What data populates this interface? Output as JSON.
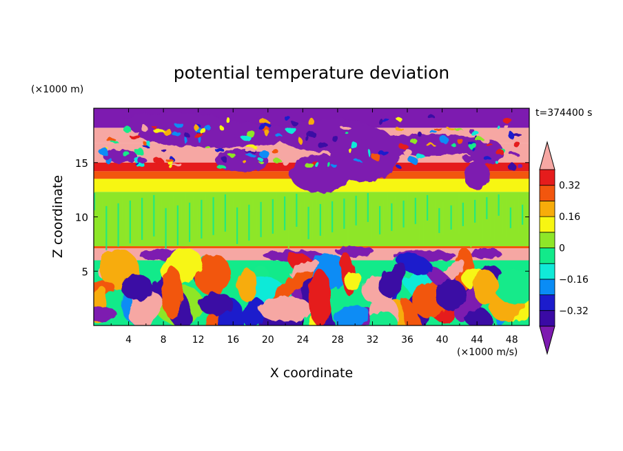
{
  "chart_data": {
    "type": "heatmap",
    "title": "potential temperature deviation",
    "xlabel": "X coordinate",
    "ylabel": "Z coordinate",
    "x_unit": "(×1000 m/s)",
    "y_unit": "(×1000 m)",
    "time_label": "t=374400 s",
    "xlim": [
      0,
      50
    ],
    "ylim": [
      0,
      20
    ],
    "x_ticks": [
      4,
      8,
      12,
      16,
      20,
      24,
      28,
      32,
      36,
      40,
      44,
      48
    ],
    "y_ticks": [
      5,
      10,
      15
    ],
    "colorbar": {
      "levels": [
        -0.4,
        -0.32,
        -0.24,
        -0.16,
        -0.08,
        0,
        0.08,
        0.16,
        0.24,
        0.32,
        0.4
      ],
      "tick_labels": [
        "0.32",
        "0.16",
        "0",
        "−0.16",
        "−0.32"
      ],
      "tick_values": [
        0.32,
        0.16,
        0,
        -0.16,
        -0.32
      ],
      "colors": [
        "#7d1bb0",
        "#3a0aa4",
        "#1c1ccc",
        "#0a8cf5",
        "#10ead8",
        "#12ea8a",
        "#8ee628",
        "#f7f612",
        "#f7ac0a",
        "#f2560e",
        "#e51c1c",
        "#f6a7a3"
      ],
      "extend": "both"
    },
    "layers": [
      {
        "z_range": [
          18.2,
          20
        ],
        "value": -0.5
      },
      {
        "z_range": [
          16.8,
          18.2
        ],
        "value": 0.45
      },
      {
        "z_range": [
          15.0,
          16.8
        ],
        "value": 0.45
      },
      {
        "z_range": [
          14.2,
          15.0
        ],
        "value": 0.36
      },
      {
        "z_range": [
          13.5,
          14.2
        ],
        "value": 0.28
      },
      {
        "z_range": [
          12.3,
          13.5
        ],
        "value": 0.12
      },
      {
        "z_range": [
          7.3,
          12.3
        ],
        "value": 0.03
      },
      {
        "z_range": [
          7.1,
          7.3
        ],
        "value": 0.3
      },
      {
        "z_range": [
          6.0,
          7.1
        ],
        "value": 0.45
      },
      {
        "z_range": [
          0,
          6.0
        ],
        "value": "turbulent mixed −0.5 to 0.5"
      }
    ]
  }
}
